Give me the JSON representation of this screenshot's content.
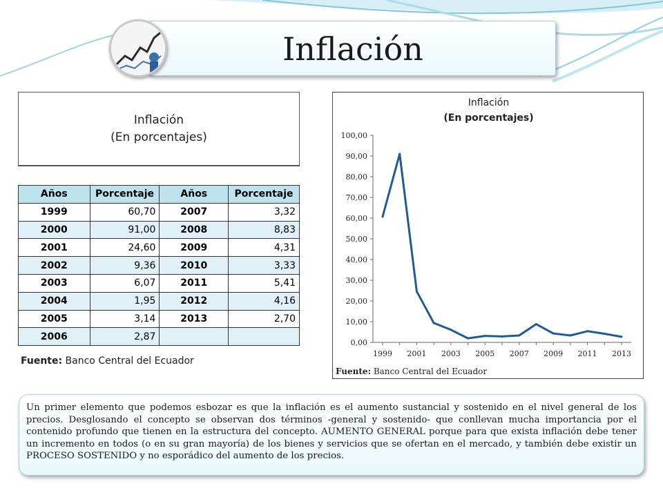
{
  "slide_title": "Inflación",
  "table_block": {
    "title": "Inflación",
    "subtitle": "(En porcentajes)",
    "headers": [
      "Años",
      "Porcentaje",
      "Años",
      "Porcentaje"
    ],
    "rows": [
      [
        "1999",
        "60,70",
        "2007",
        "3,32"
      ],
      [
        "2000",
        "91,00",
        "2008",
        "8,83"
      ],
      [
        "2001",
        "24,60",
        "2009",
        "4,31"
      ],
      [
        "2002",
        "9,36",
        "2010",
        "3,33"
      ],
      [
        "2003",
        "6,07",
        "2011",
        "5,41"
      ],
      [
        "2004",
        "1,95",
        "2012",
        "4,16"
      ],
      [
        "2005",
        "3,14",
        "2013",
        "2,70"
      ],
      [
        "2006",
        "2,87",
        "",
        ""
      ]
    ],
    "source_label": "Fuente:",
    "source_text": "Banco Central del Ecuador"
  },
  "chart_data": {
    "type": "line",
    "title": "Inflación",
    "subtitle": "(En porcentajes)",
    "x": [
      1999,
      2000,
      2001,
      2002,
      2003,
      2004,
      2005,
      2006,
      2007,
      2008,
      2009,
      2010,
      2011,
      2012,
      2013
    ],
    "values": [
      60.7,
      91.0,
      24.6,
      9.36,
      6.07,
      1.95,
      3.14,
      2.87,
      3.32,
      8.83,
      4.31,
      3.33,
      5.41,
      4.16,
      2.7
    ],
    "xticks": [
      "1999",
      "2001",
      "2003",
      "2005",
      "2007",
      "2009",
      "2011",
      "2013"
    ],
    "yticks": [
      "0,00",
      "10,00",
      "20,00",
      "30,00",
      "40,00",
      "50,00",
      "60,00",
      "70,00",
      "80,00",
      "90,00",
      "100,00"
    ],
    "ylim": [
      0,
      100
    ],
    "grid": false,
    "line_color": "#1f5a96",
    "source_label": "Fuente:",
    "source_text": "Banco Central del Ecuador"
  },
  "paragraph": "Un primer elemento que podemos esbozar es que la inflación es el aumento sustancial y sostenido en el nivel general de los precios. Desglosando el concepto se observan dos términos -general y sostenido- que conllevan mucha importancia por el contenido profundo que tienen en la estructura del concepto. AUMENTO GENERAL porque para que exista inflación debe tener un incremento en todos (o en su gran mayoría) de los bienes y servicios que se ofertan en el mercado, y también debe existir un PROCESO SOSTENIDO y no esporádico del aumento de los precios.",
  "colors": {
    "accent": "#9fd4e6",
    "table_header": "#bfe3ee",
    "table_alt_row": "#dff1f7"
  }
}
